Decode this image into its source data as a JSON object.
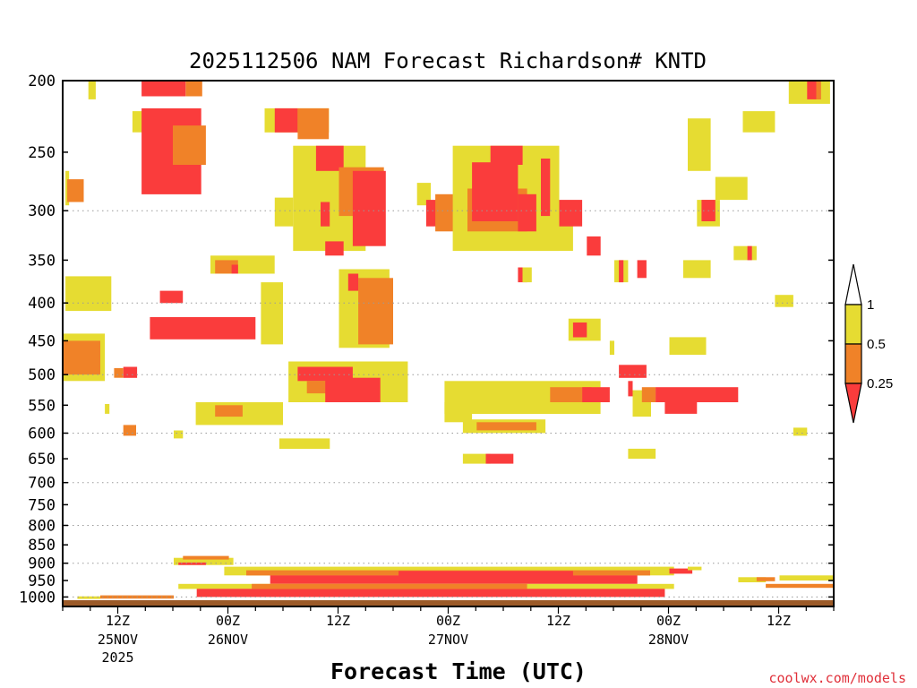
{
  "chart_data": {
    "type": "heatmap",
    "title": "2025112506 NAM Forecast Richardson# KNTD",
    "xlabel": "Forecast Time (UTC)",
    "ylabel": "",
    "credit": "coolwx.com/models",
    "y_axis": {
      "unit": "hPa",
      "scale": "log",
      "reversed": true,
      "range": [
        200,
        1030
      ],
      "ticks": [
        200,
        250,
        300,
        350,
        400,
        450,
        500,
        550,
        600,
        650,
        700,
        750,
        800,
        850,
        900,
        950,
        1000
      ],
      "grid_levels": [
        300,
        400,
        500,
        600,
        700,
        800,
        900,
        1000
      ]
    },
    "x_axis": {
      "unit": "forecast hour",
      "range": [
        0,
        84
      ],
      "ticks": [
        {
          "hour": 6,
          "label": "12Z",
          "day": "25NOV",
          "year": "2025"
        },
        {
          "hour": 18,
          "label": "00Z",
          "day": "26NOV",
          "year": ""
        },
        {
          "hour": 30,
          "label": "12Z",
          "day": "",
          "year": ""
        },
        {
          "hour": 42,
          "label": "00Z",
          "day": "27NOV",
          "year": ""
        },
        {
          "hour": 54,
          "label": "12Z",
          "day": "",
          "year": ""
        },
        {
          "hour": 66,
          "label": "00Z",
          "day": "28NOV",
          "year": ""
        },
        {
          "hour": 78,
          "label": "12Z",
          "day": "",
          "year": ""
        }
      ]
    },
    "legend": {
      "placement": "right",
      "labels": [
        "1",
        "0.5",
        "0.25"
      ],
      "bins": [
        {
          "range": "0.5-1",
          "color": "#e6dc32"
        },
        {
          "range": "0.25-0.5",
          "color": "#f08228"
        },
        {
          "range": "<0.25",
          "color": "#fa3c3c"
        }
      ]
    },
    "colors": {
      "high": "#e6dc32",
      "mid": "#f08228",
      "low": "#fa3c3c",
      "ground": "#9b5a28"
    },
    "ground_level_hpa": 1010,
    "regions": [
      {
        "bin": "high",
        "h": [
          0.3,
          0.7
        ],
        "p": [
          265,
          295
        ]
      },
      {
        "bin": "mid",
        "h": [
          0.5,
          2.3
        ],
        "p": [
          272,
          292
        ]
      },
      {
        "bin": "high",
        "h": [
          2.8,
          3.6
        ],
        "p": [
          200,
          212
        ]
      },
      {
        "bin": "high",
        "h": [
          0.3,
          5.3
        ],
        "p": [
          368,
          410
        ]
      },
      {
        "bin": "high",
        "h": [
          0.1,
          4.6
        ],
        "p": [
          440,
          510
        ]
      },
      {
        "bin": "mid",
        "h": [
          0.1,
          4.1
        ],
        "p": [
          450,
          500
        ]
      },
      {
        "bin": "low",
        "h": [
          6.6,
          8.1
        ],
        "p": [
          488,
          505
        ]
      },
      {
        "bin": "mid",
        "h": [
          5.6,
          6.6
        ],
        "p": [
          490,
          505
        ]
      },
      {
        "bin": "high",
        "h": [
          4.6,
          5.1
        ],
        "p": [
          548,
          565
        ]
      },
      {
        "bin": "mid",
        "h": [
          6.6,
          8.0
        ],
        "p": [
          585,
          605
        ]
      },
      {
        "bin": "high",
        "h": [
          7.6,
          9.1
        ],
        "p": [
          220,
          235
        ]
      },
      {
        "bin": "low",
        "h": [
          8.6,
          13.4
        ],
        "p": [
          200,
          210
        ]
      },
      {
        "bin": "mid",
        "h": [
          13.4,
          15.2
        ],
        "p": [
          200,
          210
        ]
      },
      {
        "bin": "low",
        "h": [
          8.6,
          15.1
        ],
        "p": [
          218,
          285
        ]
      },
      {
        "bin": "mid",
        "h": [
          12.0,
          15.6
        ],
        "p": [
          230,
          260
        ]
      },
      {
        "bin": "low",
        "h": [
          10.6,
          13.1
        ],
        "p": [
          385,
          400
        ]
      },
      {
        "bin": "low",
        "h": [
          9.5,
          21.0
        ],
        "p": [
          418,
          448
        ]
      },
      {
        "bin": "high",
        "h": [
          16.1,
          23.1
        ],
        "p": [
          345,
          365
        ]
      },
      {
        "bin": "mid",
        "h": [
          16.6,
          19.1
        ],
        "p": [
          350,
          365
        ]
      },
      {
        "bin": "low",
        "h": [
          18.4,
          19.1
        ],
        "p": [
          355,
          365
        ]
      },
      {
        "bin": "high",
        "h": [
          14.5,
          24.0
        ],
        "p": [
          545,
          585
        ]
      },
      {
        "bin": "mid",
        "h": [
          16.6,
          19.6
        ],
        "p": [
          550,
          570
        ]
      },
      {
        "bin": "high",
        "h": [
          12.1,
          13.1
        ],
        "p": [
          595,
          610
        ]
      },
      {
        "bin": "high",
        "h": [
          21.6,
          24.0
        ],
        "p": [
          375,
          455
        ]
      },
      {
        "bin": "high",
        "h": [
          22.0,
          29.0
        ],
        "p": [
          218,
          235
        ]
      },
      {
        "bin": "low",
        "h": [
          23.1,
          25.6
        ],
        "p": [
          218,
          235
        ]
      },
      {
        "bin": "mid",
        "h": [
          25.6,
          29.0
        ],
        "p": [
          218,
          240
        ]
      },
      {
        "bin": "high",
        "h": [
          23.1,
          25.1
        ],
        "p": [
          288,
          315
        ]
      },
      {
        "bin": "high",
        "h": [
          25.1,
          33.0
        ],
        "p": [
          245,
          340
        ]
      },
      {
        "bin": "low",
        "h": [
          27.6,
          30.6
        ],
        "p": [
          245,
          265
        ]
      },
      {
        "bin": "mid",
        "h": [
          30.1,
          35.0
        ],
        "p": [
          262,
          305
        ]
      },
      {
        "bin": "low",
        "h": [
          31.6,
          35.2
        ],
        "p": [
          265,
          335
        ]
      },
      {
        "bin": "low",
        "h": [
          28.1,
          29.1
        ],
        "p": [
          292,
          315
        ]
      },
      {
        "bin": "low",
        "h": [
          28.6,
          30.6
        ],
        "p": [
          330,
          345
        ]
      },
      {
        "bin": "high",
        "h": [
          30.1,
          35.6
        ],
        "p": [
          360,
          460
        ]
      },
      {
        "bin": "mid",
        "h": [
          32.2,
          36.0
        ],
        "p": [
          370,
          455
        ]
      },
      {
        "bin": "low",
        "h": [
          31.1,
          32.2
        ],
        "p": [
          365,
          385
        ]
      },
      {
        "bin": "high",
        "h": [
          24.6,
          37.6
        ],
        "p": [
          480,
          545
        ]
      },
      {
        "bin": "low",
        "h": [
          25.6,
          31.6
        ],
        "p": [
          488,
          510
        ]
      },
      {
        "bin": "mid",
        "h": [
          26.6,
          29.1
        ],
        "p": [
          510,
          530
        ]
      },
      {
        "bin": "low",
        "h": [
          28.6,
          34.6
        ],
        "p": [
          505,
          545
        ]
      },
      {
        "bin": "high",
        "h": [
          23.6,
          29.1
        ],
        "p": [
          610,
          630
        ]
      },
      {
        "bin": "high",
        "h": [
          38.6,
          40.1
        ],
        "p": [
          275,
          295
        ]
      },
      {
        "bin": "low",
        "h": [
          39.6,
          41.6
        ],
        "p": [
          290,
          315
        ]
      },
      {
        "bin": "mid",
        "h": [
          40.6,
          43.6
        ],
        "p": [
          285,
          320
        ]
      },
      {
        "bin": "high",
        "h": [
          42.5,
          54.1
        ],
        "p": [
          245,
          340
        ]
      },
      {
        "bin": "mid",
        "h": [
          44.1,
          50.6
        ],
        "p": [
          280,
          320
        ]
      },
      {
        "bin": "low",
        "h": [
          44.6,
          49.6
        ],
        "p": [
          258,
          310
        ]
      },
      {
        "bin": "low",
        "h": [
          46.6,
          50.1
        ],
        "p": [
          245,
          260
        ]
      },
      {
        "bin": "low",
        "h": [
          49.6,
          51.6
        ],
        "p": [
          285,
          320
        ]
      },
      {
        "bin": "low",
        "h": [
          52.1,
          53.1
        ],
        "p": [
          255,
          305
        ]
      },
      {
        "bin": "high",
        "h": [
          53.1,
          55.6
        ],
        "p": [
          300,
          340
        ]
      },
      {
        "bin": "low",
        "h": [
          54.1,
          56.6
        ],
        "p": [
          290,
          315
        ]
      },
      {
        "bin": "low",
        "h": [
          57.1,
          58.6
        ],
        "p": [
          325,
          345
        ]
      },
      {
        "bin": "low",
        "h": [
          49.6,
          50.6
        ],
        "p": [
          358,
          375
        ]
      },
      {
        "bin": "high",
        "h": [
          50.1,
          51.1
        ],
        "p": [
          358,
          375
        ]
      },
      {
        "bin": "high",
        "h": [
          41.6,
          58.6
        ],
        "p": [
          510,
          565
        ]
      },
      {
        "bin": "mid",
        "h": [
          53.1,
          57.6
        ],
        "p": [
          520,
          545
        ]
      },
      {
        "bin": "low",
        "h": [
          56.6,
          59.6
        ],
        "p": [
          520,
          545
        ]
      },
      {
        "bin": "high",
        "h": [
          41.6,
          44.6
        ],
        "p": [
          545,
          580
        ]
      },
      {
        "bin": "high",
        "h": [
          43.6,
          52.6
        ],
        "p": [
          575,
          600
        ]
      },
      {
        "bin": "mid",
        "h": [
          45.1,
          51.6
        ],
        "p": [
          580,
          595
        ]
      },
      {
        "bin": "high",
        "h": [
          43.6,
          46.6
        ],
        "p": [
          640,
          660
        ]
      },
      {
        "bin": "low",
        "h": [
          46.1,
          49.1
        ],
        "p": [
          640,
          660
        ]
      },
      {
        "bin": "high",
        "h": [
          55.1,
          58.6
        ],
        "p": [
          420,
          450
        ]
      },
      {
        "bin": "low",
        "h": [
          55.6,
          57.1
        ],
        "p": [
          425,
          445
        ]
      },
      {
        "bin": "high",
        "h": [
          59.6,
          60.1
        ],
        "p": [
          450,
          470
        ]
      },
      {
        "bin": "high",
        "h": [
          60.1,
          61.6
        ],
        "p": [
          350,
          375
        ]
      },
      {
        "bin": "low",
        "h": [
          60.6,
          61.1
        ],
        "p": [
          350,
          375
        ]
      },
      {
        "bin": "low",
        "h": [
          62.6,
          63.6
        ],
        "p": [
          350,
          370
        ]
      },
      {
        "bin": "low",
        "h": [
          60.6,
          63.6
        ],
        "p": [
          485,
          505
        ]
      },
      {
        "bin": "low",
        "h": [
          61.6,
          62.1
        ],
        "p": [
          510,
          535
        ]
      },
      {
        "bin": "high",
        "h": [
          62.1,
          64.1
        ],
        "p": [
          525,
          570
        ]
      },
      {
        "bin": "mid",
        "h": [
          63.1,
          64.6
        ],
        "p": [
          520,
          545
        ]
      },
      {
        "bin": "low",
        "h": [
          64.6,
          73.6
        ],
        "p": [
          520,
          545
        ]
      },
      {
        "bin": "low",
        "h": [
          65.6,
          69.1
        ],
        "p": [
          545,
          565
        ]
      },
      {
        "bin": "high",
        "h": [
          61.6,
          64.6
        ],
        "p": [
          630,
          650
        ]
      },
      {
        "bin": "high",
        "h": [
          67.6,
          70.6
        ],
        "p": [
          350,
          370
        ]
      },
      {
        "bin": "high",
        "h": [
          66.1,
          70.1
        ],
        "p": [
          445,
          470
        ]
      },
      {
        "bin": "high",
        "h": [
          68.1,
          70.6
        ],
        "p": [
          225,
          265
        ]
      },
      {
        "bin": "high",
        "h": [
          71.1,
          74.6
        ],
        "p": [
          270,
          290
        ]
      },
      {
        "bin": "high",
        "h": [
          74.1,
          77.6
        ],
        "p": [
          220,
          235
        ]
      },
      {
        "bin": "high",
        "h": [
          69.1,
          71.6
        ],
        "p": [
          290,
          315
        ]
      },
      {
        "bin": "low",
        "h": [
          69.6,
          71.1
        ],
        "p": [
          290,
          310
        ]
      },
      {
        "bin": "high",
        "h": [
          73.1,
          75.6
        ],
        "p": [
          335,
          350
        ]
      },
      {
        "bin": "low",
        "h": [
          74.6,
          75.1
        ],
        "p": [
          335,
          350
        ]
      },
      {
        "bin": "high",
        "h": [
          77.6,
          79.6
        ],
        "p": [
          390,
          405
        ]
      },
      {
        "bin": "high",
        "h": [
          79.1,
          83.6
        ],
        "p": [
          200,
          215
        ]
      },
      {
        "bin": "low",
        "h": [
          81.1,
          82.6
        ],
        "p": [
          200,
          212
        ]
      },
      {
        "bin": "mid",
        "h": [
          82.1,
          82.6
        ],
        "p": [
          200,
          212
        ]
      },
      {
        "bin": "high",
        "h": [
          79.6,
          81.1
        ],
        "p": [
          590,
          605
        ]
      },
      {
        "bin": "high",
        "h": [
          73.6,
          76.6
        ],
        "p": [
          940,
          955
        ]
      },
      {
        "bin": "mid",
        "h": [
          75.6,
          77.6
        ],
        "p": [
          940,
          952
        ]
      },
      {
        "bin": "high",
        "h": [
          78.1,
          84.0
        ],
        "p": [
          935,
          950
        ]
      },
      {
        "bin": "mid",
        "h": [
          76.6,
          84.0
        ],
        "p": [
          960,
          972
        ]
      },
      {
        "bin": "high",
        "h": [
          12.1,
          18.6
        ],
        "p": [
          885,
          905
        ]
      },
      {
        "bin": "mid",
        "h": [
          13.1,
          18.1
        ],
        "p": [
          880,
          890
        ]
      },
      {
        "bin": "low",
        "h": [
          12.6,
          15.6
        ],
        "p": [
          898,
          905
        ]
      },
      {
        "bin": "high",
        "h": [
          17.6,
          66.6
        ],
        "p": [
          910,
          935
        ]
      },
      {
        "bin": "mid",
        "h": [
          20.0,
          64.0
        ],
        "p": [
          920,
          935
        ]
      },
      {
        "bin": "low",
        "h": [
          22.6,
          62.6
        ],
        "p": [
          935,
          960
        ]
      },
      {
        "bin": "low",
        "h": [
          36.6,
          55.6
        ],
        "p": [
          922,
          940
        ]
      },
      {
        "bin": "high",
        "h": [
          12.6,
          66.6
        ],
        "p": [
          960,
          975
        ]
      },
      {
        "bin": "low",
        "h": [
          14.6,
          65.6
        ],
        "p": [
          975,
          1000
        ]
      },
      {
        "bin": "mid",
        "h": [
          20.6,
          50.6
        ],
        "p": [
          960,
          975
        ]
      },
      {
        "bin": "mid",
        "h": [
          4.1,
          12.1
        ],
        "p": [
          995,
          1005
        ]
      },
      {
        "bin": "high",
        "h": [
          1.6,
          4.1
        ],
        "p": [
          998,
          1006
        ]
      },
      {
        "bin": "low",
        "h": [
          66.1,
          68.6
        ],
        "p": [
          915,
          930
        ]
      },
      {
        "bin": "high",
        "h": [
          68.1,
          69.6
        ],
        "p": [
          910,
          920
        ]
      }
    ]
  }
}
